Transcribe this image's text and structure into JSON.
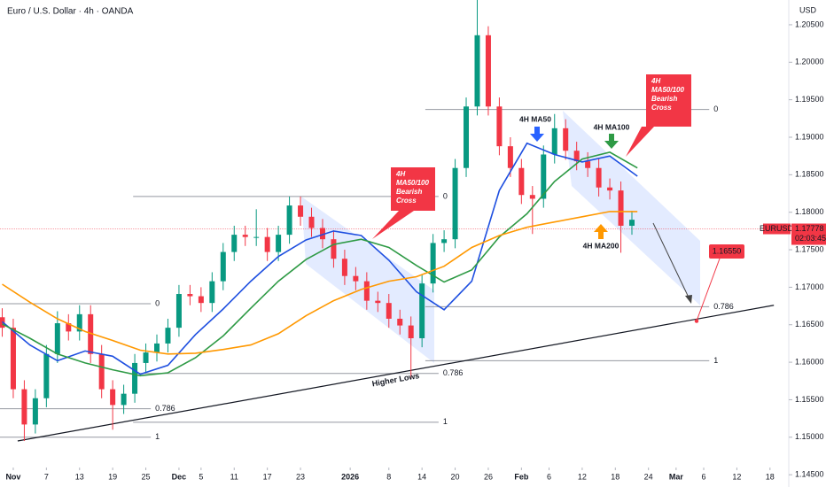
{
  "chart_data": {
    "type": "candlestick",
    "title": "Euro / U.S. Dollar · 4h · OANDA",
    "currency": "USD",
    "symbol": "EURUSD",
    "countdown": "02:03:45",
    "up_color": "#089981",
    "down_color": "#f23645",
    "xlim": [
      -2.4,
      140.4
    ],
    "ylim": [
      1.1436,
      1.2083
    ],
    "grid": false,
    "xticks": [
      {
        "value": 0,
        "label": "Nov"
      },
      {
        "value": 6,
        "label": "7"
      },
      {
        "value": 12,
        "label": "13"
      },
      {
        "value": 18,
        "label": "19"
      },
      {
        "value": 24,
        "label": "25"
      },
      {
        "value": 30,
        "label": "Dec"
      },
      {
        "value": 34,
        "label": "5"
      },
      {
        "value": 40,
        "label": "11"
      },
      {
        "value": 46,
        "label": "17"
      },
      {
        "value": 52,
        "label": "23"
      },
      {
        "value": 61,
        "label": "2026"
      },
      {
        "value": 68,
        "label": "8"
      },
      {
        "value": 74,
        "label": "14"
      },
      {
        "value": 80,
        "label": "20"
      },
      {
        "value": 86,
        "label": "26"
      },
      {
        "value": 92,
        "label": "Feb"
      },
      {
        "value": 97,
        "label": "6"
      },
      {
        "value": 103,
        "label": "12"
      },
      {
        "value": 109,
        "label": "18"
      },
      {
        "value": 115,
        "label": "24"
      },
      {
        "value": 120,
        "label": "Mar"
      },
      {
        "value": 125,
        "label": "6"
      },
      {
        "value": 131,
        "label": "12"
      },
      {
        "value": 137,
        "label": "18"
      }
    ],
    "yticks": [
      {
        "value": 1.145,
        "label": "1.14500"
      },
      {
        "value": 1.15,
        "label": "1.15000"
      },
      {
        "value": 1.155,
        "label": "1.15500"
      },
      {
        "value": 1.16,
        "label": "1.16000"
      },
      {
        "value": 1.165,
        "label": "1.16500"
      },
      {
        "value": 1.17,
        "label": "1.17000"
      },
      {
        "value": 1.175,
        "label": "1.17500"
      },
      {
        "value": 1.18,
        "label": "1.18000"
      },
      {
        "value": 1.185,
        "label": "1.18500"
      },
      {
        "value": 1.19,
        "label": "1.19000"
      },
      {
        "value": 1.195,
        "label": "1.19500"
      },
      {
        "value": 1.2,
        "label": "1.20000"
      },
      {
        "value": 1.205,
        "label": "1.20500"
      }
    ],
    "x": [
      -2,
      0,
      2,
      4,
      6,
      8,
      10,
      12,
      14,
      16,
      18,
      20,
      22,
      24,
      26,
      28,
      30,
      32,
      34,
      36,
      38,
      40,
      42,
      44,
      46,
      48,
      50,
      52,
      54,
      56,
      58,
      60,
      62,
      64,
      66,
      68,
      70,
      72,
      74,
      76,
      78,
      80,
      82,
      84,
      86,
      88,
      90,
      92,
      94,
      96,
      98,
      100,
      102,
      104,
      106,
      108,
      110,
      112
    ],
    "open": [
      1.166,
      1.1646,
      1.1564,
      1.1517,
      1.1552,
      1.1611,
      1.1652,
      1.1641,
      1.1664,
      1.1611,
      1.1564,
      1.1543,
      1.1558,
      1.1599,
      1.1613,
      1.1625,
      1.1646,
      1.1691,
      1.1688,
      1.1679,
      1.1708,
      1.1747,
      1.177,
      1.1767,
      1.1767,
      1.1747,
      1.177,
      1.1809,
      1.1794,
      1.1779,
      1.1764,
      1.1738,
      1.1715,
      1.1708,
      1.1682,
      1.1679,
      1.1658,
      1.1649,
      1.1632,
      1.1705,
      1.1759,
      1.1764,
      1.1859,
      1.1941,
      1.2036,
      1.1941,
      1.1888,
      1.1859,
      1.1823,
      1.1818,
      1.1877,
      1.1912,
      1.1882,
      1.1868,
      1.1859,
      1.1833,
      1.1829,
      1.1782
    ],
    "high": [
      1.1672,
      1.1658,
      1.1576,
      1.1564,
      1.1623,
      1.1668,
      1.1664,
      1.1676,
      1.1676,
      1.1623,
      1.1576,
      1.157,
      1.1611,
      1.1625,
      1.1637,
      1.1658,
      1.1703,
      1.1703,
      1.17,
      1.172,
      1.1759,
      1.1782,
      1.1782,
      1.1804,
      1.1779,
      1.1782,
      1.1821,
      1.1821,
      1.1806,
      1.1791,
      1.1776,
      1.175,
      1.1727,
      1.172,
      1.1694,
      1.1691,
      1.167,
      1.1661,
      1.1717,
      1.1771,
      1.1776,
      1.1871,
      1.1953,
      1.2083,
      1.2048,
      1.1953,
      1.19,
      1.1871,
      1.1835,
      1.1889,
      1.1931,
      1.1924,
      1.1894,
      1.188,
      1.1871,
      1.1845,
      1.1841,
      1.1802
    ],
    "low": [
      1.1634,
      1.1552,
      1.1495,
      1.1505,
      1.154,
      1.1599,
      1.1629,
      1.1629,
      1.1599,
      1.1552,
      1.151,
      1.1531,
      1.1546,
      1.1587,
      1.1601,
      1.1613,
      1.1634,
      1.1676,
      1.1667,
      1.1667,
      1.1696,
      1.1735,
      1.1755,
      1.1755,
      1.1735,
      1.1735,
      1.1758,
      1.1782,
      1.1767,
      1.1752,
      1.1726,
      1.1703,
      1.1696,
      1.167,
      1.1667,
      1.1646,
      1.1637,
      1.1578,
      1.162,
      1.1693,
      1.1747,
      1.1752,
      1.1847,
      1.1929,
      1.1929,
      1.1876,
      1.1847,
      1.1811,
      1.1771,
      1.1806,
      1.1865,
      1.187,
      1.1856,
      1.1847,
      1.1821,
      1.1817,
      1.1746,
      1.177
    ],
    "close": [
      1.1646,
      1.1564,
      1.1517,
      1.1552,
      1.1611,
      1.1652,
      1.1641,
      1.1664,
      1.1611,
      1.1564,
      1.1543,
      1.1558,
      1.1599,
      1.1613,
      1.1625,
      1.1646,
      1.1691,
      1.1688,
      1.1679,
      1.1708,
      1.1747,
      1.177,
      1.1767,
      1.1767,
      1.1747,
      1.177,
      1.1809,
      1.1794,
      1.1779,
      1.1764,
      1.1738,
      1.1715,
      1.1708,
      1.1682,
      1.1679,
      1.1658,
      1.1649,
      1.1632,
      1.1705,
      1.1759,
      1.1764,
      1.1859,
      1.1941,
      1.2036,
      1.1941,
      1.1888,
      1.1859,
      1.1823,
      1.1818,
      1.1877,
      1.1912,
      1.1882,
      1.1868,
      1.1859,
      1.1833,
      1.1829,
      1.1782,
      1.179
    ],
    "lines": [
      {
        "color": "#1e4fe0",
        "x": [
          -2,
          3,
          8,
          13,
          18,
          23,
          28,
          33,
          38,
          43,
          48,
          53,
          58,
          63,
          68,
          73,
          78,
          83,
          88,
          93,
          98,
          103,
          108,
          113
        ],
        "values": [
          1.1654,
          1.1623,
          1.1602,
          1.1615,
          1.1608,
          1.1584,
          1.1596,
          1.1637,
          1.1671,
          1.1708,
          1.1741,
          1.1763,
          1.1775,
          1.1769,
          1.1736,
          1.1694,
          1.167,
          1.1708,
          1.1829,
          1.1892,
          1.1877,
          1.1867,
          1.1875,
          1.1848
        ]
      },
      {
        "color": "#2e9a45",
        "x": [
          -2,
          3,
          8,
          13,
          18,
          23,
          28,
          33,
          38,
          43,
          48,
          53,
          58,
          63,
          68,
          73,
          78,
          83,
          88,
          93,
          98,
          103,
          108,
          113
        ],
        "values": [
          1.1651,
          1.1632,
          1.1611,
          1.1599,
          1.159,
          1.1582,
          1.1586,
          1.1606,
          1.1635,
          1.1672,
          1.1708,
          1.1737,
          1.1757,
          1.1764,
          1.1753,
          1.1729,
          1.1707,
          1.1723,
          1.1767,
          1.1798,
          1.1841,
          1.1871,
          1.188,
          1.1859
        ]
      },
      {
        "color": "#ff9800",
        "x": [
          -2,
          3,
          8,
          13,
          18,
          23,
          28,
          33,
          38,
          43,
          48,
          53,
          58,
          63,
          68,
          73,
          78,
          83,
          88,
          93,
          98,
          103,
          108,
          113
        ],
        "values": [
          1.1704,
          1.168,
          1.1658,
          1.1641,
          1.1629,
          1.1616,
          1.1611,
          1.1612,
          1.1617,
          1.1623,
          1.1638,
          1.1662,
          1.1682,
          1.1697,
          1.1708,
          1.1714,
          1.1728,
          1.1753,
          1.1769,
          1.178,
          1.1787,
          1.1794,
          1.1801,
          1.1801
        ]
      }
    ],
    "fib_levels": [
      {
        "xrange": [
          -2.4,
          24.9
        ],
        "levels": [
          {
            "level": 0,
            "price": 1.1678
          },
          {
            "level": 0.786,
            "price": 1.1538
          },
          {
            "level": 1,
            "price": 1.15
          }
        ]
      },
      {
        "xrange": [
          21.7,
          77
        ],
        "levels": [
          {
            "level": 0,
            "price": 1.1821
          },
          {
            "level": 0.786,
            "price": 1.1585
          },
          {
            "level": 1,
            "price": 1.152
          }
        ]
      },
      {
        "xrange": [
          74.6,
          126
        ],
        "levels": [
          {
            "level": 0,
            "price": 1.1937
          },
          {
            "level": 0.786,
            "price": 1.1674
          },
          {
            "level": 1,
            "price": 1.1602
          }
        ]
      }
    ],
    "trendline": {
      "label": "Higher Lows",
      "x": [
        0.8,
        137.7
      ],
      "values": [
        1.1495,
        1.1676
      ]
    },
    "last_price": 1.17778,
    "target": {
      "value": 1.1655,
      "label": "1.16550"
    },
    "annotations": {
      "cross_1": [
        "4H",
        "MA50/100",
        "Bearish",
        "Cross"
      ],
      "cross_2": [
        "4H",
        "MA50/100",
        "Bearish",
        "Cross"
      ],
      "ma50": "4H MA50",
      "ma100": "4H MA100",
      "ma200": "4H MA200"
    }
  }
}
